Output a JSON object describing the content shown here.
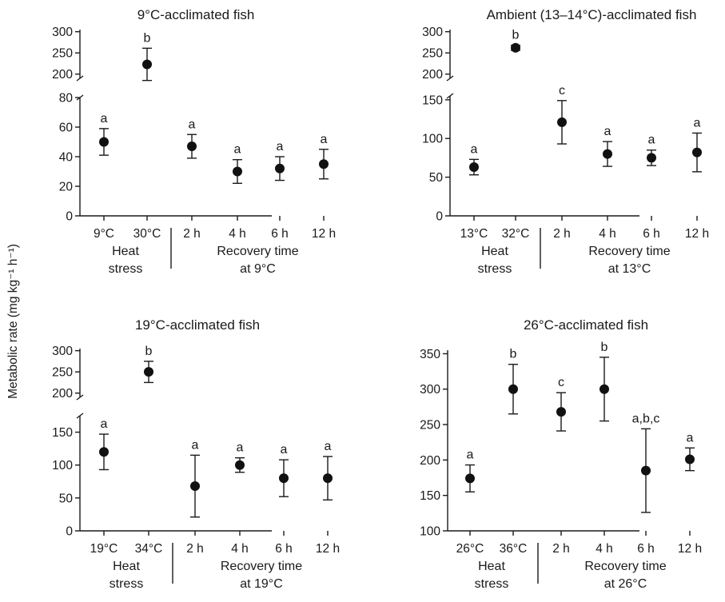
{
  "ylabel": "Metabolic rate (mg kg⁻¹ h⁻¹)",
  "chart_data": [
    {
      "type": "scatter",
      "title": "9°C-acclimated fish",
      "categories": [
        "9°C",
        "30°C",
        "2 h",
        "4 h",
        "6 h",
        "12 h"
      ],
      "groups": [
        {
          "label_lines": [
            "Heat",
            "stress"
          ],
          "categories": [
            "9°C",
            "30°C"
          ]
        },
        {
          "label_lines": [
            "Recovery time",
            "at 9°C"
          ],
          "categories": [
            "2 h",
            "4 h",
            "6 h",
            "12 h"
          ]
        }
      ],
      "values": [
        50,
        223,
        47,
        30,
        32,
        35
      ],
      "errors": [
        9,
        38,
        8,
        8,
        8,
        10
      ],
      "significance": [
        "a",
        "b",
        "a",
        "a",
        "a",
        "a"
      ],
      "ylower": {
        "ylim": [
          0,
          80
        ],
        "ticks": [
          0,
          20,
          40,
          60,
          80
        ]
      },
      "yupper": {
        "ylim": [
          190,
          305
        ],
        "ticks": [
          200,
          250,
          300
        ]
      }
    },
    {
      "type": "scatter",
      "title": "Ambient (13–14°C)-acclimated fish",
      "categories": [
        "13°C",
        "32°C",
        "2 h",
        "4 h",
        "6 h",
        "12 h"
      ],
      "groups": [
        {
          "label_lines": [
            "Heat",
            "stress"
          ],
          "categories": [
            "13°C",
            "32°C"
          ]
        },
        {
          "label_lines": [
            "Recovery time",
            "at 13°C"
          ],
          "categories": [
            "2 h",
            "4 h",
            "6 h",
            "12 h"
          ]
        }
      ],
      "values": [
        63,
        262,
        121,
        80,
        75,
        82
      ],
      "errors": [
        10,
        6,
        28,
        16,
        10,
        25
      ],
      "significance": [
        "a",
        "b",
        "c",
        "a",
        "a",
        "a"
      ],
      "ylower": {
        "ylim": [
          0,
          155
        ],
        "ticks": [
          0,
          50,
          100,
          150
        ]
      },
      "yupper": {
        "ylim": [
          190,
          305
        ],
        "ticks": [
          200,
          250,
          300
        ]
      }
    },
    {
      "type": "scatter",
      "title": "19°C-acclimated fish",
      "categories": [
        "19°C",
        "34°C",
        "2 h",
        "4 h",
        "6 h",
        "12 h"
      ],
      "groups": [
        {
          "label_lines": [
            "Heat",
            "stress"
          ],
          "categories": [
            "19°C",
            "34°C"
          ]
        },
        {
          "label_lines": [
            "Recovery time",
            "at 19°C"
          ],
          "categories": [
            "2 h",
            "4 h",
            "6 h",
            "12 h"
          ]
        }
      ],
      "values": [
        120,
        250,
        68,
        100,
        80,
        80
      ],
      "errors": [
        27,
        25,
        47,
        11,
        28,
        33
      ],
      "significance": [
        "a",
        "b",
        "a",
        "a",
        "a",
        "a"
      ],
      "ylower": {
        "ylim": [
          0,
          175
        ],
        "ticks": [
          0,
          50,
          100,
          150
        ]
      },
      "yupper": {
        "ylim": [
          190,
          305
        ],
        "ticks": [
          200,
          250,
          300
        ]
      }
    },
    {
      "type": "scatter",
      "title": "26°C-acclimated fish",
      "categories": [
        "26°C",
        "36°C",
        "2 h",
        "4 h",
        "6 h",
        "12 h"
      ],
      "groups": [
        {
          "label_lines": [
            "Heat",
            "stress"
          ],
          "categories": [
            "26°C",
            "36°C"
          ]
        },
        {
          "label_lines": [
            "Recovery time",
            "at 26°C"
          ],
          "categories": [
            "2 h",
            "4 h",
            "6 h",
            "12 h"
          ]
        }
      ],
      "values": [
        174,
        300,
        268,
        300,
        185,
        201
      ],
      "errors": [
        19,
        35,
        27,
        45,
        59,
        16
      ],
      "significance": [
        "a",
        "b",
        "c",
        "b",
        "a,b,c",
        "a"
      ],
      "ylim": [
        100,
        355
      ],
      "ticks": [
        100,
        150,
        200,
        250,
        300,
        350
      ]
    }
  ]
}
